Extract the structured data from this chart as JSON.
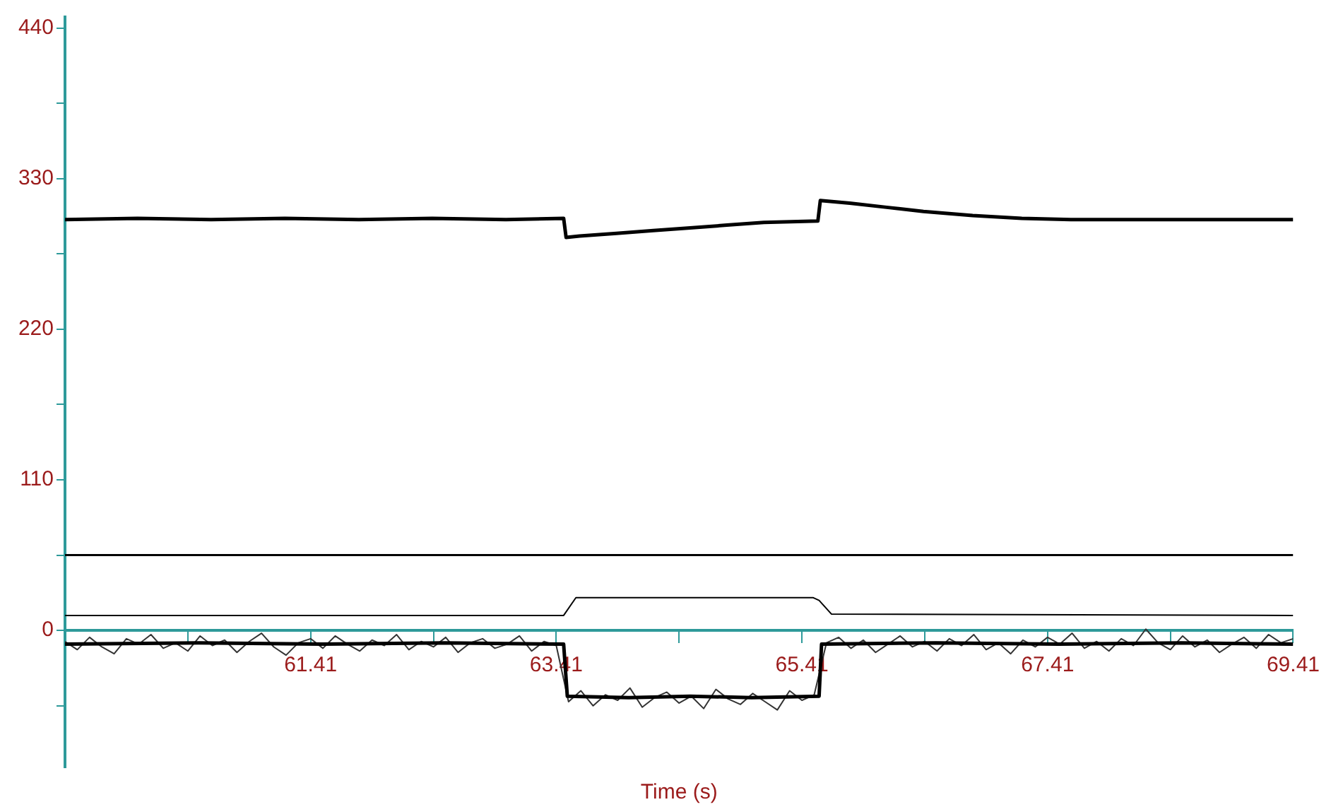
{
  "chart_data": {
    "type": "line",
    "xlabel": "Time (s)",
    "legend": false,
    "marker": "none",
    "line_style": "solid",
    "xlim": [
      59.41,
      69.41
    ],
    "ylim": [
      -100,
      448
    ],
    "xticks": [
      {
        "value": 60.41,
        "label": null
      },
      61.41,
      {
        "value": 62.41,
        "label": null
      },
      63.41,
      {
        "value": 64.41,
        "label": null
      },
      65.41,
      {
        "value": 66.41,
        "label": null
      },
      67.41,
      {
        "value": 68.41,
        "label": null
      },
      69.41
    ],
    "yticks": [
      {
        "value": -55,
        "label": null
      },
      0,
      {
        "value": 55,
        "label": null
      },
      110,
      {
        "value": 165,
        "label": null
      },
      220,
      {
        "value": 275,
        "label": null
      },
      330,
      {
        "value": 385,
        "label": null
      },
      440
    ],
    "series": [
      {
        "color": "#000000",
        "x": [
          59.41,
          60.0,
          60.6,
          61.2,
          61.8,
          62.4,
          63.0,
          63.47,
          63.49,
          63.6,
          63.9,
          64.2,
          64.5,
          64.8,
          65.1,
          65.54,
          65.56,
          65.8,
          66.1,
          66.4,
          66.8,
          67.2,
          67.6,
          68.2,
          68.8,
          69.41
        ],
        "values": [
          300,
          301,
          300,
          301,
          300,
          301,
          300,
          301,
          287,
          288,
          290,
          292,
          294,
          296,
          298,
          299,
          314,
          312,
          309,
          306,
          303,
          301,
          300,
          300,
          300,
          300
        ]
      },
      {
        "color": "#000000",
        "x": [
          59.41,
          69.41
        ],
        "values": [
          55,
          55
        ]
      },
      {
        "color": "#000000",
        "x": [
          59.41,
          63.47,
          63.57,
          65.5,
          65.55,
          65.65,
          69.41
        ],
        "values": [
          11,
          11,
          24,
          24,
          22,
          12,
          11
        ]
      },
      {
        "color": "#000000",
        "x": [
          59.41,
          60.5,
          61.5,
          62.5,
          63.47,
          63.5,
          64.0,
          64.5,
          65.0,
          65.55,
          65.57,
          66.5,
          67.5,
          68.5,
          69.41
        ],
        "values": [
          -10,
          -9,
          -10,
          -9,
          -10,
          -48,
          -49,
          -48,
          -49,
          -48,
          -10,
          -9,
          -10,
          -9,
          -10
        ]
      },
      {
        "color": "#333333",
        "x": [
          59.41,
          59.51,
          59.61,
          59.71,
          59.81,
          59.91,
          60.01,
          60.11,
          60.21,
          60.31,
          60.41,
          60.51,
          60.61,
          60.71,
          60.81,
          60.91,
          61.01,
          61.11,
          61.21,
          61.31,
          61.41,
          61.51,
          61.61,
          61.71,
          61.81,
          61.91,
          62.01,
          62.11,
          62.21,
          62.31,
          62.41,
          62.51,
          62.61,
          62.71,
          62.81,
          62.91,
          63.01,
          63.11,
          63.21,
          63.31,
          63.41,
          63.51,
          63.61,
          63.71,
          63.81,
          63.91,
          64.01,
          64.11,
          64.21,
          64.31,
          64.41,
          64.51,
          64.61,
          64.71,
          64.81,
          64.91,
          65.01,
          65.11,
          65.21,
          65.31,
          65.41,
          65.51,
          65.61,
          65.71,
          65.81,
          65.91,
          66.01,
          66.11,
          66.21,
          66.31,
          66.41,
          66.51,
          66.61,
          66.71,
          66.81,
          66.91,
          67.01,
          67.11,
          67.21,
          67.31,
          67.41,
          67.51,
          67.61,
          67.71,
          67.81,
          67.91,
          68.01,
          68.11,
          68.21,
          68.31,
          68.41,
          68.51,
          68.61,
          68.71,
          68.81,
          68.91,
          69.01,
          69.11,
          69.21,
          69.31,
          69.41
        ],
        "values": [
          -8,
          -14,
          -5,
          -12,
          -17,
          -6,
          -10,
          -3,
          -13,
          -9,
          -15,
          -4,
          -11,
          -7,
          -16,
          -8,
          -2,
          -12,
          -18,
          -9,
          -6,
          -13,
          -4,
          -10,
          -15,
          -7,
          -11,
          -3,
          -14,
          -8,
          -12,
          -5,
          -16,
          -9,
          -6,
          -13,
          -10,
          -4,
          -15,
          -8,
          -11,
          -52,
          -44,
          -55,
          -47,
          -51,
          -42,
          -56,
          -49,
          -45,
          -53,
          -48,
          -57,
          -43,
          -50,
          -54,
          -46,
          -52,
          -58,
          -44,
          -51,
          -47,
          -9,
          -5,
          -13,
          -7,
          -16,
          -10,
          -4,
          -12,
          -8,
          -15,
          -6,
          -11,
          -3,
          -14,
          -9,
          -17,
          -7,
          -12,
          -5,
          -10,
          -2,
          -13,
          -8,
          -15,
          -6,
          -11,
          1,
          -9,
          -14,
          -4,
          -12,
          -7,
          -16,
          -10,
          -5,
          -13,
          -3,
          -9,
          -6
        ]
      }
    ]
  }
}
